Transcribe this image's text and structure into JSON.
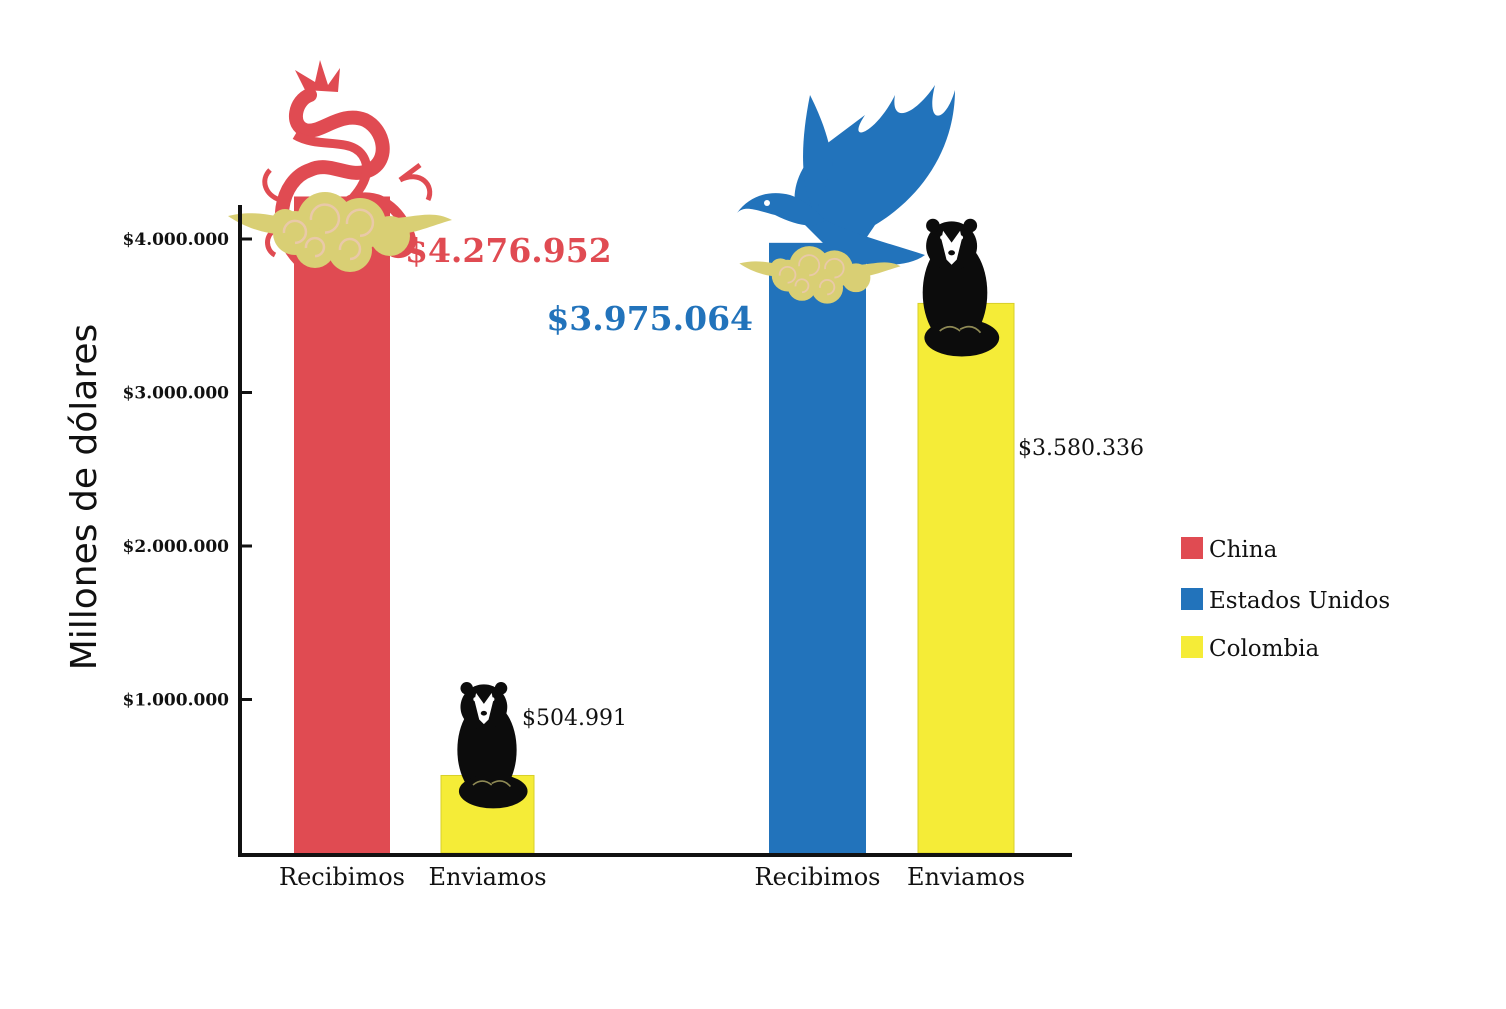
{
  "chart_data": {
    "type": "bar",
    "ylabel": "Millones de dólares",
    "ylim": [
      0,
      4300000
    ],
    "yticks": [
      {
        "value": 1000000,
        "label": "$1.000.000"
      },
      {
        "value": 2000000,
        "label": "$2.000.000"
      },
      {
        "value": 3000000,
        "label": "$3.000.000"
      },
      {
        "value": 4000000,
        "label": "$4.000.000"
      }
    ],
    "groups": [
      {
        "bars": [
          {
            "category": "Recibimos",
            "series": "China",
            "value": 4276952,
            "label": "$4.276.952"
          },
          {
            "category": "Enviamos",
            "series": "Colombia",
            "value": 504991,
            "label": "$504.991"
          }
        ]
      },
      {
        "bars": [
          {
            "category": "Recibimos",
            "series": "Estados Unidos",
            "value": 3975064,
            "label": "$3.975.064"
          },
          {
            "category": "Enviamos",
            "series": "Colombia",
            "value": 3580336,
            "label": "$3.580.336"
          }
        ]
      }
    ],
    "legend": {
      "position": "right",
      "items": [
        {
          "name": "China",
          "color": "#e04b52"
        },
        {
          "name": "Estados Unidos",
          "color": "#2273bb"
        },
        {
          "name": "Colombia",
          "color": "#f5ec37"
        }
      ]
    },
    "grid": false,
    "illustrations": [
      "dragon-icon",
      "eagle-icon",
      "cloud-icon",
      "bear-icon"
    ]
  }
}
